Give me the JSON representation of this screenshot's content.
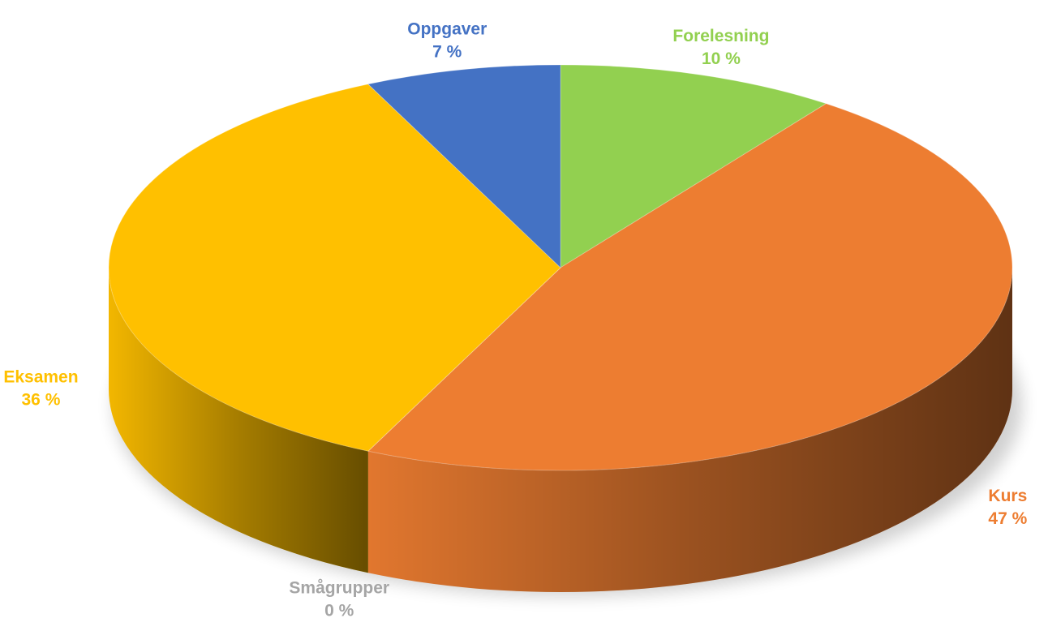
{
  "chart_data": {
    "type": "pie",
    "categories": [
      "Forelesning",
      "Kurs",
      "Smågrupper",
      "Eksamen",
      "Oppgaver"
    ],
    "values": [
      10,
      47,
      0,
      36,
      7
    ],
    "value_labels": [
      "10 %",
      "47 %",
      "0 %",
      "36 %",
      "7 %"
    ],
    "colors": [
      "#92d050",
      "#ed7d31",
      "#a5a5a5",
      "#ffc000",
      "#4472c4"
    ]
  }
}
